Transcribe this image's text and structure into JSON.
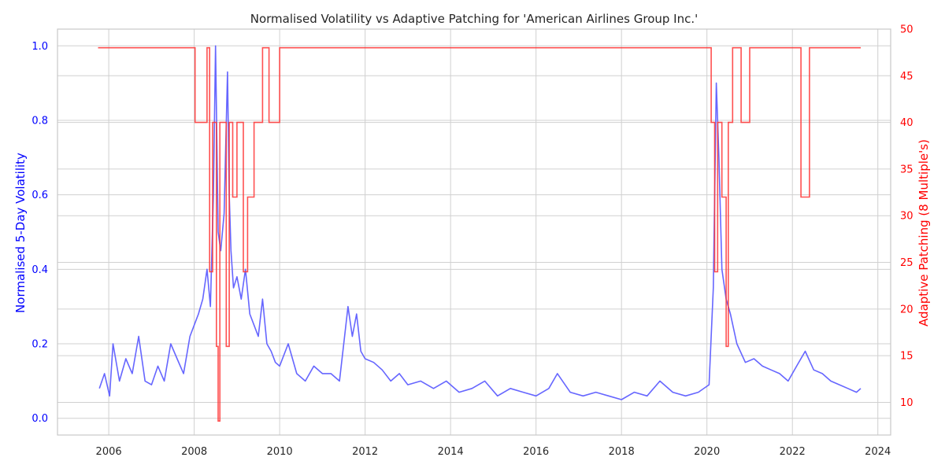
{
  "chart_data": {
    "type": "line",
    "title": "Normalised Volatility vs Adaptive Patching for 'American Airlines Group Inc.'",
    "xlabel": "",
    "ylabel": "Normalised 5-Day Volatility",
    "y2label": "Adaptive Patching (8 Multiple's)",
    "colors": {
      "left": "#0000ff",
      "right": "#ff0000",
      "volatility_line": "#6666ff",
      "patching_line": "#ff3333",
      "grid": "#d0d0d0",
      "frame": "#c8c8c8"
    },
    "grid": true,
    "xlim": [
      2004.8,
      2024.3
    ],
    "ylim": [
      -0.045,
      1.045
    ],
    "y2lim": [
      6.5,
      50.0
    ],
    "x_ticks": [
      "2006",
      "2008",
      "2010",
      "2012",
      "2014",
      "2016",
      "2018",
      "2020",
      "2022",
      "2024"
    ],
    "y_ticks": [
      "0.0",
      "0.2",
      "0.4",
      "0.6",
      "0.8",
      "1.0"
    ],
    "y2_ticks": [
      "10",
      "15",
      "20",
      "25",
      "30",
      "35",
      "40",
      "45",
      "50"
    ],
    "series": [
      {
        "name": "",
        "axis": "left",
        "x": [
          2005.78,
          2005.9,
          2006.02,
          2006.1,
          2006.25,
          2006.4,
          2006.55,
          2006.7,
          2006.85,
          2007.0,
          2007.15,
          2007.3,
          2007.45,
          2007.6,
          2007.75,
          2007.9,
          2008.0,
          2008.1,
          2008.2,
          2008.3,
          2008.38,
          2008.45,
          2008.5,
          2008.56,
          2008.62,
          2008.7,
          2008.78,
          2008.82,
          2008.86,
          2008.92,
          2009.0,
          2009.1,
          2009.2,
          2009.3,
          2009.4,
          2009.5,
          2009.6,
          2009.7,
          2009.8,
          2009.9,
          2010.0,
          2010.2,
          2010.4,
          2010.6,
          2010.8,
          2011.0,
          2011.2,
          2011.4,
          2011.6,
          2011.7,
          2011.8,
          2011.9,
          2012.0,
          2012.2,
          2012.4,
          2012.6,
          2012.8,
          2013.0,
          2013.3,
          2013.6,
          2013.9,
          2014.2,
          2014.5,
          2014.8,
          2015.1,
          2015.4,
          2015.7,
          2016.0,
          2016.3,
          2016.5,
          2016.8,
          2017.1,
          2017.4,
          2017.7,
          2018.0,
          2018.3,
          2018.6,
          2018.9,
          2019.2,
          2019.5,
          2019.8,
          2020.05,
          2020.15,
          2020.22,
          2020.28,
          2020.35,
          2020.45,
          2020.55,
          2020.7,
          2020.9,
          2021.1,
          2021.3,
          2021.5,
          2021.7,
          2021.9,
          2022.1,
          2022.3,
          2022.5,
          2022.7,
          2022.9,
          2023.1,
          2023.3,
          2023.5,
          2023.6
        ],
        "values": [
          0.08,
          0.12,
          0.06,
          0.2,
          0.1,
          0.16,
          0.12,
          0.22,
          0.1,
          0.09,
          0.14,
          0.1,
          0.2,
          0.16,
          0.12,
          0.22,
          0.25,
          0.28,
          0.32,
          0.4,
          0.3,
          0.6,
          1.0,
          0.5,
          0.45,
          0.55,
          0.93,
          0.6,
          0.45,
          0.35,
          0.38,
          0.32,
          0.4,
          0.28,
          0.25,
          0.22,
          0.32,
          0.2,
          0.18,
          0.15,
          0.14,
          0.2,
          0.12,
          0.1,
          0.14,
          0.12,
          0.12,
          0.1,
          0.3,
          0.22,
          0.28,
          0.18,
          0.16,
          0.15,
          0.13,
          0.1,
          0.12,
          0.09,
          0.1,
          0.08,
          0.1,
          0.07,
          0.08,
          0.1,
          0.06,
          0.08,
          0.07,
          0.06,
          0.08,
          0.12,
          0.07,
          0.06,
          0.07,
          0.06,
          0.05,
          0.07,
          0.06,
          0.1,
          0.07,
          0.06,
          0.07,
          0.09,
          0.35,
          0.9,
          0.7,
          0.4,
          0.32,
          0.28,
          0.2,
          0.15,
          0.16,
          0.14,
          0.13,
          0.12,
          0.1,
          0.14,
          0.18,
          0.13,
          0.12,
          0.1,
          0.09,
          0.08,
          0.07,
          0.08
        ]
      },
      {
        "name": "",
        "axis": "right",
        "x": [
          2005.75,
          2007.9,
          2008.02,
          2008.3,
          2008.36,
          2008.43,
          2008.52,
          2008.56,
          2008.6,
          2008.75,
          2008.82,
          2008.9,
          2009.0,
          2009.15,
          2009.25,
          2009.4,
          2009.6,
          2009.75,
          2010.0,
          2011.0,
          2012.0,
          2013.0,
          2016.0,
          2018.5,
          2019.5,
          2020.1,
          2020.18,
          2020.25,
          2020.35,
          2020.45,
          2020.5,
          2020.6,
          2020.8,
          2021.0,
          2021.5,
          2022.0,
          2022.2,
          2022.4,
          2023.0,
          2023.6
        ],
        "values": [
          48,
          48,
          40,
          48,
          24,
          40,
          16,
          8,
          40,
          16,
          40,
          32,
          40,
          24,
          32,
          40,
          48,
          40,
          48,
          48,
          48,
          48,
          48,
          48,
          48,
          40,
          24,
          40,
          32,
          16,
          40,
          48,
          40,
          48,
          48,
          48,
          32,
          48,
          48,
          48
        ]
      }
    ]
  }
}
